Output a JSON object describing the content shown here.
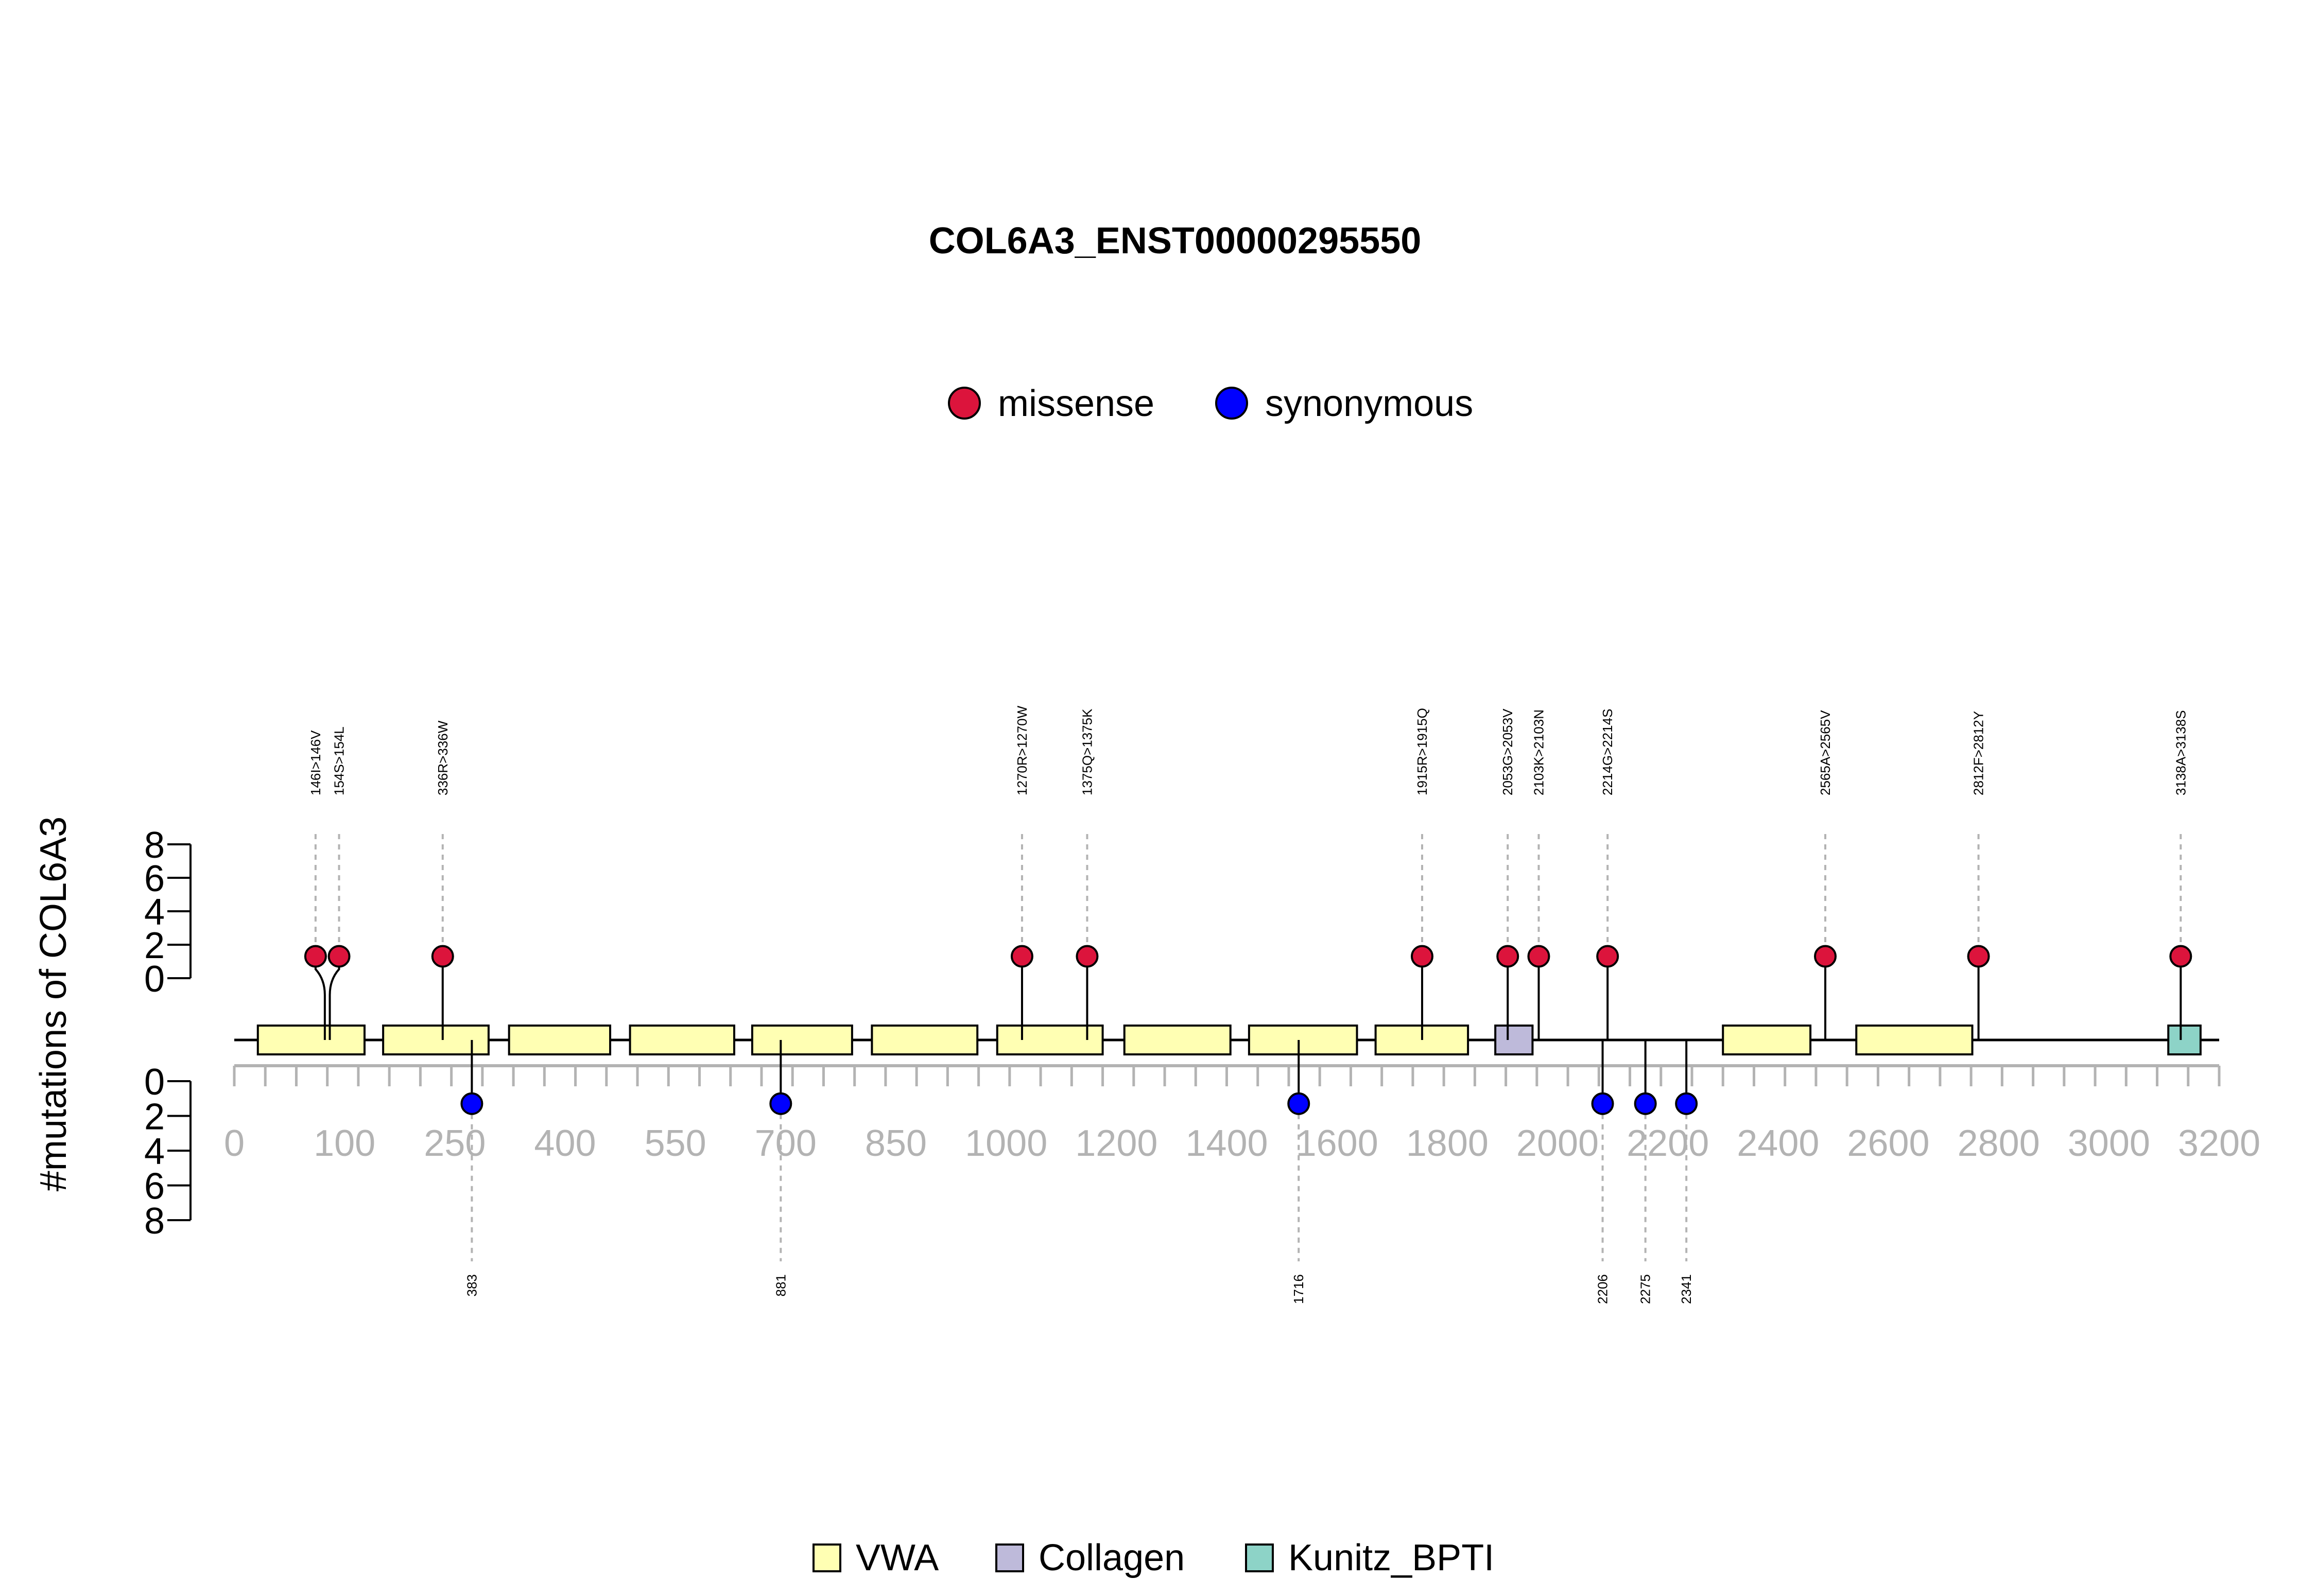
{
  "chart_data": {
    "type": "lollipop",
    "title": "COL6A3_ENST00000295550",
    "ylabel": "#mutations of COL6A3",
    "ylim": [
      0,
      8
    ],
    "y_ticks": [
      "0",
      "2",
      "4",
      "6",
      "8"
    ],
    "x_ticks": [
      "0",
      "100",
      "250",
      "400",
      "550",
      "700",
      "850",
      "1000",
      "1200",
      "1400",
      "1600",
      "1800",
      "2000",
      "2200",
      "2400",
      "2600",
      "2800",
      "3000",
      "3200"
    ],
    "mutation_legend": [
      {
        "name": "missense",
        "color": "#dc143c"
      },
      {
        "name": "synonymous",
        "color": "#0000ff"
      }
    ],
    "domain_legend": [
      {
        "name": "VWA",
        "color": "#ffffb3"
      },
      {
        "name": "Collagen",
        "color": "#bebada"
      },
      {
        "name": "Kunitz_BPTI",
        "color": "#8dd3c7"
      }
    ],
    "domains": [
      {
        "name": "VWA",
        "start": 38,
        "end": 210
      },
      {
        "name": "VWA",
        "start": 240,
        "end": 410
      },
      {
        "name": "VWA",
        "start": 443,
        "end": 606
      },
      {
        "name": "VWA",
        "start": 638,
        "end": 806
      },
      {
        "name": "VWA",
        "start": 835,
        "end": 996
      },
      {
        "name": "VWA",
        "start": 1028,
        "end": 1198
      },
      {
        "name": "VWA",
        "start": 1230,
        "end": 1400
      },
      {
        "name": "VWA",
        "start": 1435,
        "end": 1606
      },
      {
        "name": "VWA",
        "start": 1636,
        "end": 1810
      },
      {
        "name": "VWA",
        "start": 1840,
        "end": 1989
      },
      {
        "name": "Collagen",
        "start": 2033,
        "end": 2093
      },
      {
        "name": "VWA",
        "start": 2400,
        "end": 2541
      },
      {
        "name": "VWA",
        "start": 2615,
        "end": 2802
      },
      {
        "name": "Kunitz_BPTI",
        "start": 3118,
        "end": 3170
      }
    ],
    "protein_length": 3200,
    "missense": [
      {
        "position": 146,
        "count": 1,
        "label": "146I>146V"
      },
      {
        "position": 154,
        "count": 1,
        "label": "154S>154L"
      },
      {
        "position": 336,
        "count": 1,
        "label": "336R>336W"
      },
      {
        "position": 1270,
        "count": 1,
        "label": "1270R>1270W"
      },
      {
        "position": 1375,
        "count": 1,
        "label": "1375Q>1375K"
      },
      {
        "position": 1915,
        "count": 1,
        "label": "1915R>1915Q"
      },
      {
        "position": 2053,
        "count": 1,
        "label": "2053G>2053V"
      },
      {
        "position": 2103,
        "count": 1,
        "label": "2103K>2103N"
      },
      {
        "position": 2214,
        "count": 1,
        "label": "2214G>2214S"
      },
      {
        "position": 2565,
        "count": 1,
        "label": "2565A>2565V"
      },
      {
        "position": 2812,
        "count": 1,
        "label": "2812F>2812Y"
      },
      {
        "position": 3138,
        "count": 1,
        "label": "3138A>3138S"
      }
    ],
    "synonymous": [
      {
        "position": 383,
        "count": 1,
        "label": "383"
      },
      {
        "position": 881,
        "count": 1,
        "label": "881"
      },
      {
        "position": 1716,
        "count": 1,
        "label": "1716"
      },
      {
        "position": 2206,
        "count": 1,
        "label": "2206"
      },
      {
        "position": 2275,
        "count": 1,
        "label": "2275"
      },
      {
        "position": 2341,
        "count": 1,
        "label": "2341"
      }
    ]
  }
}
